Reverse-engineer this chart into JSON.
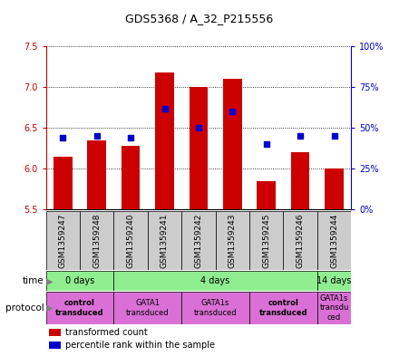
{
  "title": "GDS5368 / A_32_P215556",
  "samples": [
    "GSM1359247",
    "GSM1359248",
    "GSM1359240",
    "GSM1359241",
    "GSM1359242",
    "GSM1359243",
    "GSM1359245",
    "GSM1359246",
    "GSM1359244"
  ],
  "transformed_counts": [
    6.15,
    6.35,
    6.28,
    7.18,
    7.0,
    7.1,
    5.85,
    6.2,
    6.0
  ],
  "percentile_ranks": [
    44,
    45,
    44,
    62,
    50,
    60,
    40,
    45,
    45
  ],
  "ylim": [
    5.5,
    7.5
  ],
  "yticks": [
    5.5,
    6.0,
    6.5,
    7.0,
    7.5
  ],
  "y2lim": [
    0,
    100
  ],
  "y2ticks": [
    0,
    25,
    50,
    75,
    100
  ],
  "y2ticklabels": [
    "0%",
    "25%",
    "50%",
    "75%",
    "100%"
  ],
  "bar_color": "#cc0000",
  "dot_color": "#0000cc",
  "bar_bottom": 5.5,
  "left_axis_color": "#cc0000",
  "right_axis_color": "#0000cc",
  "sample_bg_color": "#cccccc",
  "time_groups": [
    {
      "label": "0 days",
      "start": 0,
      "end": 2,
      "color": "#90ee90"
    },
    {
      "label": "4 days",
      "start": 2,
      "end": 8,
      "color": "#90ee90"
    },
    {
      "label": "14 days",
      "start": 8,
      "end": 9,
      "color": "#90ee90"
    }
  ],
  "protocol_groups": [
    {
      "label": "control\ntransduced",
      "start": 0,
      "end": 2,
      "color": "#da70d6",
      "bold": true
    },
    {
      "label": "GATA1\ntransduced",
      "start": 2,
      "end": 4,
      "color": "#da70d6",
      "bold": false
    },
    {
      "label": "GATA1s\ntransduced",
      "start": 4,
      "end": 6,
      "color": "#da70d6",
      "bold": false
    },
    {
      "label": "control\ntransduced",
      "start": 6,
      "end": 8,
      "color": "#da70d6",
      "bold": true
    },
    {
      "label": "GATA1s\ntransdu\nced",
      "start": 8,
      "end": 9,
      "color": "#da70d6",
      "bold": false
    }
  ],
  "legend_items": [
    {
      "color": "#cc0000",
      "label": "transformed count"
    },
    {
      "color": "#0000cc",
      "label": "percentile rank within the sample"
    }
  ]
}
